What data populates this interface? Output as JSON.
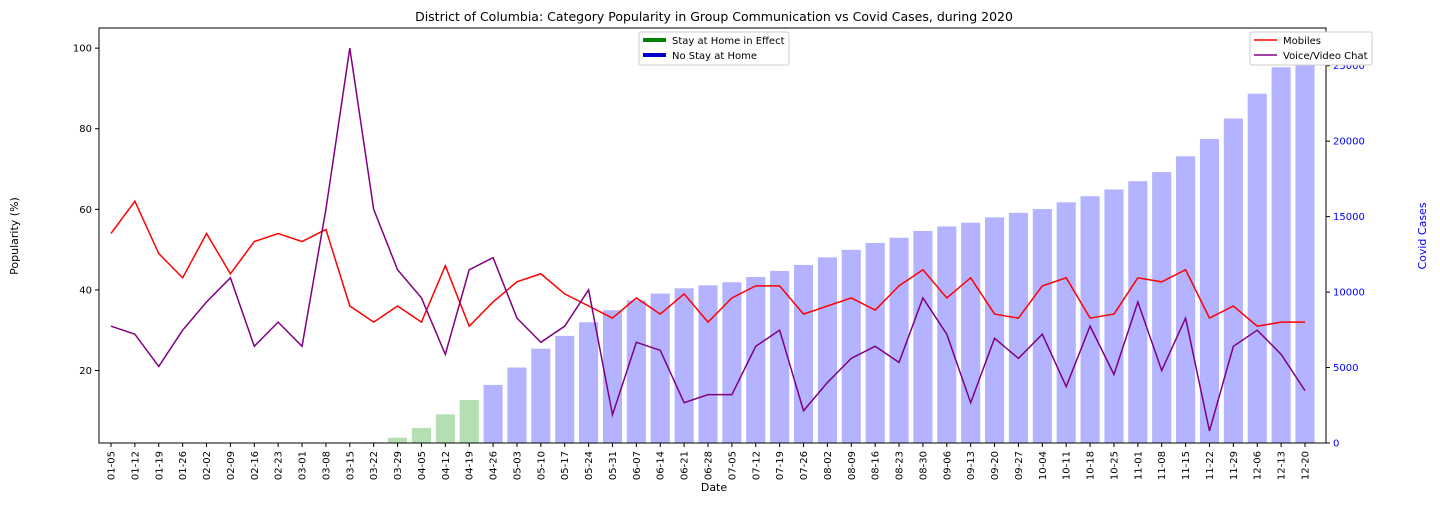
{
  "chart_data": {
    "type": "bar+line",
    "title": "District of Columbia: Category Popularity in Group Communication vs Covid Cases, during 2020",
    "xlabel": "Date",
    "ylabel": "Popularity (%)",
    "y2label": "Covid Cases",
    "ylim": [
      2,
      105
    ],
    "y2lim": [
      0,
      27500
    ],
    "yticks": [
      20,
      40,
      60,
      80,
      100
    ],
    "y2ticks": [
      0,
      5000,
      10000,
      15000,
      20000,
      25000
    ],
    "categories": [
      "01-05",
      "01-12",
      "01-19",
      "01-26",
      "02-02",
      "02-09",
      "02-16",
      "02-23",
      "03-01",
      "03-08",
      "03-15",
      "03-22",
      "03-29",
      "04-05",
      "04-12",
      "04-19",
      "04-26",
      "05-03",
      "05-10",
      "05-17",
      "05-24",
      "05-31",
      "06-07",
      "06-14",
      "06-21",
      "06-28",
      "07-05",
      "07-12",
      "07-19",
      "07-26",
      "08-02",
      "08-09",
      "08-16",
      "08-23",
      "08-30",
      "09-06",
      "09-13",
      "09-20",
      "09-27",
      "10-04",
      "10-11",
      "10-18",
      "10-25",
      "11-01",
      "11-08",
      "11-15",
      "11-22",
      "11-29",
      "12-06",
      "12-13",
      "12-20"
    ],
    "cases": [
      0,
      0,
      0,
      0,
      0,
      0,
      0,
      0,
      0,
      0,
      0,
      50,
      350,
      1000,
      1900,
      2850,
      3850,
      5000,
      6250,
      7100,
      8000,
      8800,
      9450,
      9900,
      10250,
      10450,
      10650,
      11000,
      11400,
      11800,
      12300,
      12800,
      13250,
      13600,
      14050,
      14350,
      14600,
      14950,
      15250,
      15500,
      15950,
      16350,
      16800,
      17350,
      17950,
      19000,
      20150,
      21500,
      23150,
      24900,
      26600
    ],
    "stay_at_home": [
      false,
      false,
      false,
      false,
      false,
      false,
      false,
      false,
      false,
      false,
      false,
      true,
      true,
      true,
      true,
      true,
      false,
      false,
      false,
      false,
      false,
      false,
      false,
      false,
      false,
      false,
      false,
      false,
      false,
      false,
      false,
      false,
      false,
      false,
      false,
      false,
      false,
      false,
      false,
      false,
      false,
      false,
      false,
      false,
      false,
      false,
      false,
      false,
      false,
      false,
      false
    ],
    "series": [
      {
        "name": "Mobiles",
        "color": "#ff0000",
        "values": [
          54,
          62,
          49,
          43,
          54,
          44,
          52,
          54,
          52,
          55,
          36,
          32,
          36,
          32,
          46,
          31,
          37,
          42,
          44,
          39,
          36,
          33,
          38,
          34,
          39,
          32,
          38,
          41,
          41,
          34,
          36,
          38,
          35,
          41,
          45,
          38,
          43,
          34,
          33,
          41,
          43,
          33,
          34,
          43,
          42,
          45,
          33,
          36,
          31,
          32,
          32
        ]
      },
      {
        "name": "Voice/Video Chat",
        "color": "#800080",
        "values": [
          31,
          29,
          21,
          30,
          37,
          43,
          26,
          32,
          26,
          60,
          100,
          60,
          45,
          38,
          24,
          45,
          48,
          33,
          27,
          31,
          40,
          9,
          27,
          25,
          12,
          14,
          14,
          26,
          30,
          10,
          17,
          23,
          26,
          22,
          38,
          29,
          12,
          28,
          23,
          29,
          16,
          31,
          19,
          37,
          20,
          33,
          5,
          26,
          30,
          24,
          15
        ]
      }
    ],
    "bar_colors": {
      "stay_at_home": "#b3dfb3",
      "no_stay_at_home": "#b3b3ff"
    },
    "legend_left": [
      {
        "label": "Stay at Home in Effect",
        "color": "#008000"
      },
      {
        "label": "No Stay at Home",
        "color": "#0000cd"
      }
    ],
    "legend_left_position": "top-center",
    "legend_right_position": "top-right",
    "grid": false
  }
}
